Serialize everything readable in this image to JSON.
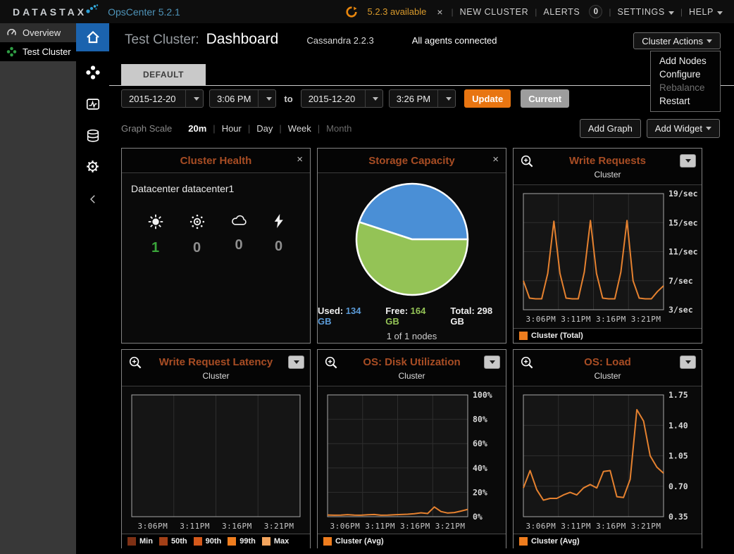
{
  "colors": {
    "accent_orange": "#e87511",
    "title_rust": "#a84d24",
    "line_orange": "#e5812f",
    "health_ok_green": "#3aa53a",
    "pie_used_blue": "#4a8fd6",
    "pie_free_green": "#94c356"
  },
  "topbar": {
    "logo": "DATASTAX",
    "product": "OpsCenter 5.2.1",
    "update_text": "5.2.3 available",
    "close": "×",
    "separator": "|",
    "new_cluster": "NEW CLUSTER",
    "alerts": "ALERTS",
    "alerts_count": "0",
    "settings": "SETTINGS",
    "help": "HELP"
  },
  "sidebar": {
    "overview": "Overview",
    "cluster": "Test Cluster"
  },
  "header": {
    "cluster_label": "Test Cluster:",
    "page_title": "Dashboard",
    "cassandra_version": "Cassandra 2.2.3",
    "agents_status": "All agents connected",
    "cluster_actions": "Cluster Actions",
    "menu": [
      {
        "label": "Add Nodes",
        "disabled": false
      },
      {
        "label": "Configure",
        "disabled": false
      },
      {
        "label": "Rebalance",
        "disabled": true
      },
      {
        "label": "Restart",
        "disabled": false
      }
    ]
  },
  "tab_label": "DEFAULT",
  "timebar": {
    "from_date": "2015-12-20",
    "from_time": "3:06 PM",
    "to_label": "to",
    "to_date": "2015-12-20",
    "to_time": "3:26 PM",
    "update_btn": "Update",
    "current_btn": "Current"
  },
  "scalebar": {
    "label": "Graph Scale",
    "separator": "|",
    "options": [
      {
        "label": "20m",
        "selected": true
      },
      {
        "label": "Hour"
      },
      {
        "label": "Day"
      },
      {
        "label": "Week"
      },
      {
        "label": "Month",
        "muted": true
      }
    ],
    "add_graph": "Add Graph",
    "add_widget": "Add Widget"
  },
  "widgets": {
    "cluster_health": {
      "title": "Cluster Health",
      "close": "×",
      "datacenter": "Datacenter datacenter1",
      "stats": [
        {
          "icon": "sun-filled",
          "value": "1",
          "color": "#3aa53a"
        },
        {
          "icon": "sun-dotted",
          "value": "0",
          "color": "#8f8f8f"
        },
        {
          "icon": "cloud",
          "value": "0",
          "color": "#8f8f8f"
        },
        {
          "icon": "bolt",
          "value": "0",
          "color": "#8f8f8f"
        }
      ]
    },
    "storage_capacity": {
      "title": "Storage Capacity",
      "close": "×",
      "pie": {
        "type": "pie",
        "labels": [
          "Used",
          "Free"
        ],
        "values": [
          134,
          164
        ],
        "colors": [
          "#4a8fd6",
          "#94c356"
        ],
        "start_angle": 0
      },
      "used_label": "Used:",
      "used_value": "134 GB",
      "used_color": "#5b9bd8",
      "free_label": "Free:",
      "free_value": "164 GB",
      "free_color": "#94c356",
      "total_label": "Total:",
      "total_value": "298 GB",
      "nodes": "1 of 1 nodes"
    },
    "write_requests": {
      "title": "Write Requests",
      "subtitle": "Cluster",
      "legend": [
        {
          "label": "Cluster (Total)",
          "color": "#ef7d1e"
        }
      ],
      "chart": {
        "type": "line",
        "color": "#e5812f",
        "ylim": [
          3,
          19
        ],
        "yticks": [
          {
            "v": 19,
            "label": "19/sec"
          },
          {
            "v": 15,
            "label": "15/sec"
          },
          {
            "v": 11,
            "label": "11/sec"
          },
          {
            "v": 7,
            "label": "7/sec"
          },
          {
            "v": 3,
            "label": "3/sec"
          }
        ],
        "xlabels": [
          "3:06PM",
          "3:11PM",
          "3:16PM",
          "3:21PM"
        ],
        "values": [
          7.0,
          4.6,
          4.5,
          4.5,
          8.0,
          15.2,
          8.0,
          4.6,
          4.5,
          4.5,
          8.2,
          15.3,
          8.0,
          4.6,
          4.5,
          4.5,
          8.2,
          15.3,
          7.0,
          4.6,
          4.5,
          4.5,
          5.5,
          6.3
        ]
      }
    },
    "write_request_latency": {
      "title": "Write Request Latency",
      "subtitle": "Cluster",
      "legend": [
        {
          "label": "Min",
          "color": "#7e3014"
        },
        {
          "label": "50th",
          "color": "#a34017"
        },
        {
          "label": "90th",
          "color": "#d4591b"
        },
        {
          "label": "99th",
          "color": "#ef7d1e"
        },
        {
          "label": "Max",
          "color": "#f4a55e"
        }
      ],
      "chart": {
        "type": "line",
        "color": "#e5812f",
        "ylim": [
          0,
          1
        ],
        "yticks": [],
        "xlabels": [
          "3:06PM",
          "3:11PM",
          "3:16PM",
          "3:21PM"
        ],
        "values": []
      }
    },
    "os_disk_utilization": {
      "title": "OS: Disk Utilization",
      "subtitle": "Cluster",
      "legend": [
        {
          "label": "Cluster (Avg)",
          "color": "#ef7d1e"
        }
      ],
      "chart": {
        "type": "line",
        "color": "#e5812f",
        "ylim": [
          0,
          100
        ],
        "yticks": [
          {
            "v": 100,
            "label": "100%"
          },
          {
            "v": 80,
            "label": "80%"
          },
          {
            "v": 60,
            "label": "60%"
          },
          {
            "v": 40,
            "label": "40%"
          },
          {
            "v": 20,
            "label": "20%"
          },
          {
            "v": 0,
            "label": "0%"
          }
        ],
        "xlabels": [
          "3:06PM",
          "3:11PM",
          "3:16PM",
          "3:21PM"
        ],
        "values": [
          1.4,
          1.2,
          1.3,
          1.7,
          1.3,
          1.2,
          1.6,
          1.8,
          1.2,
          1.3,
          1.6,
          1.8,
          2.0,
          2.4,
          3.2,
          2.6,
          8.0,
          4.2,
          3.0,
          3.4,
          4.6,
          6.0
        ]
      }
    },
    "os_load": {
      "title": "OS: Load",
      "subtitle": "Cluster",
      "legend": [
        {
          "label": "Cluster (Avg)",
          "color": "#ef7d1e"
        }
      ],
      "chart": {
        "type": "line",
        "color": "#e5812f",
        "ylim": [
          0.35,
          1.75
        ],
        "yticks": [
          {
            "v": 1.75,
            "label": "1.75"
          },
          {
            "v": 1.4,
            "label": "1.40"
          },
          {
            "v": 1.05,
            "label": "1.05"
          },
          {
            "v": 0.7,
            "label": "0.70"
          },
          {
            "v": 0.35,
            "label": "0.35"
          }
        ],
        "xlabels": [
          "3:06PM",
          "3:11PM",
          "3:16PM",
          "3:21PM"
        ],
        "values": [
          0.68,
          0.88,
          0.66,
          0.54,
          0.56,
          0.56,
          0.6,
          0.63,
          0.6,
          0.68,
          0.72,
          0.68,
          0.87,
          0.88,
          0.58,
          0.57,
          0.78,
          1.58,
          1.45,
          1.05,
          0.92,
          0.85
        ]
      }
    }
  }
}
